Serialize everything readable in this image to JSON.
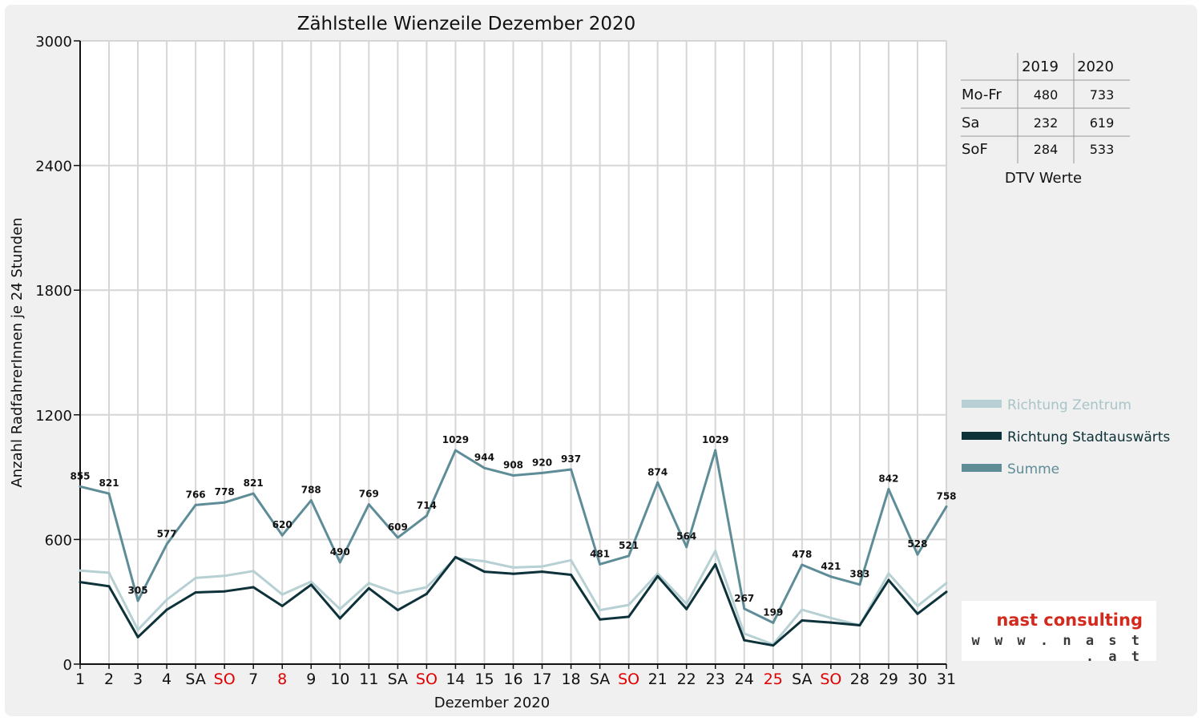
{
  "chart_data": {
    "type": "line",
    "title": "Zählstelle Wienzeile Dezember 2020",
    "xlabel": "Dezember 2020",
    "ylabel": "Anzahl RadfahrerInnen je 24 Stunden",
    "ylim": [
      0,
      3000
    ],
    "yticks": [
      "0",
      "600",
      "1200",
      "1800",
      "2400",
      "3000"
    ],
    "grid": true,
    "legend_position": "right",
    "categories": [
      "1",
      "2",
      "3",
      "4",
      "SA",
      "SO",
      "7",
      "8",
      "9",
      "10",
      "11",
      "SA",
      "SO",
      "14",
      "15",
      "16",
      "17",
      "18",
      "SA",
      "SO",
      "21",
      "22",
      "23",
      "24",
      "25",
      "SA",
      "SO",
      "28",
      "29",
      "30",
      "31"
    ],
    "highlight_categories": [
      5,
      7,
      12,
      19,
      24,
      26
    ],
    "series": [
      {
        "name": "Richtung Zentrum",
        "color": "#b7d0d3",
        "values": [
          450,
          440,
          165,
          310,
          415,
          425,
          448,
          335,
          397,
          265,
          390,
          340,
          370,
          510,
          495,
          465,
          470,
          500,
          260,
          285,
          436,
          290,
          545,
          147,
          95,
          262,
          222,
          187,
          436,
          280,
          390
        ]
      },
      {
        "name": "Richtung Stadtauswärts",
        "color": "#0d3239",
        "values": [
          395,
          375,
          130,
          262,
          345,
          350,
          370,
          280,
          382,
          220,
          365,
          260,
          338,
          515,
          445,
          435,
          445,
          430,
          215,
          228,
          423,
          265,
          480,
          115,
          90,
          210,
          200,
          187,
          405,
          242,
          348
        ]
      },
      {
        "name": "Summe",
        "color": "#5e8d97",
        "values": [
          855,
          821,
          305,
          577,
          766,
          778,
          821,
          620,
          788,
          490,
          769,
          609,
          714,
          1029,
          944,
          908,
          920,
          937,
          481,
          521,
          874,
          564,
          1029,
          267,
          199,
          478,
          421,
          383,
          842,
          528,
          758
        ],
        "data_labels": [
          "855",
          "821",
          "305",
          "577",
          "766",
          "778",
          "821",
          "620",
          "788",
          "490",
          "769",
          "609",
          "714",
          "1029",
          "944",
          "908",
          "920",
          "937",
          "481",
          "521",
          "874",
          "564",
          "1029",
          "267",
          "199",
          "478",
          "421",
          "383",
          "842",
          "528",
          "758"
        ]
      }
    ]
  },
  "dtv_table": {
    "columns": [
      "2019",
      "2020"
    ],
    "rows": [
      {
        "label": "Mo-Fr",
        "v2019": "480",
        "v2020": "733"
      },
      {
        "label": "Sa",
        "v2019": "232",
        "v2020": "619"
      },
      {
        "label": "SoF",
        "v2019": "284",
        "v2020": "533"
      }
    ],
    "caption": "DTV Werte"
  },
  "logo": {
    "name": "nast consulting",
    "url": "w w w . n a s t . a t"
  },
  "colors": {
    "weekend_label": "#e00000",
    "normal_label": "#111111"
  }
}
